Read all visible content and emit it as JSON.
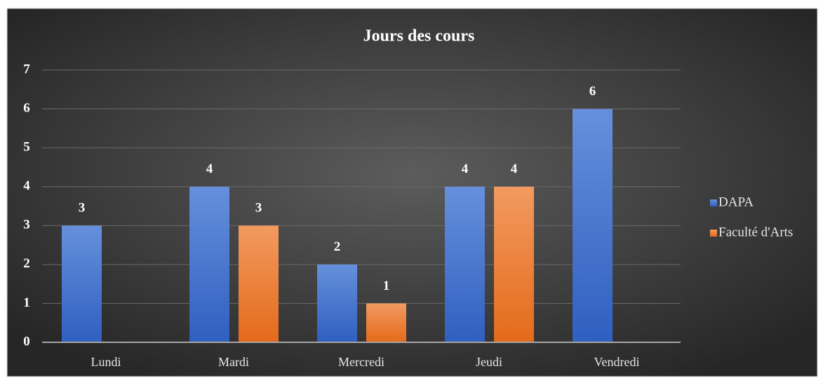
{
  "chart_data": {
    "type": "bar",
    "title": "Jours des cours",
    "categories": [
      "Lundi",
      "Mardi",
      "Mercredi",
      "Jeudi",
      "Vendredi"
    ],
    "series": [
      {
        "name": "DAPA",
        "color": "#4472c4",
        "values": [
          3,
          4,
          2,
          4,
          6
        ]
      },
      {
        "name": "Faculté d'Arts",
        "color": "#ed7d31",
        "values": [
          null,
          3,
          1,
          4,
          null
        ]
      }
    ],
    "ylim": [
      0,
      7
    ],
    "yticks": [
      0,
      1,
      2,
      3,
      4,
      5,
      6,
      7
    ],
    "grid": true,
    "legend": "right"
  }
}
